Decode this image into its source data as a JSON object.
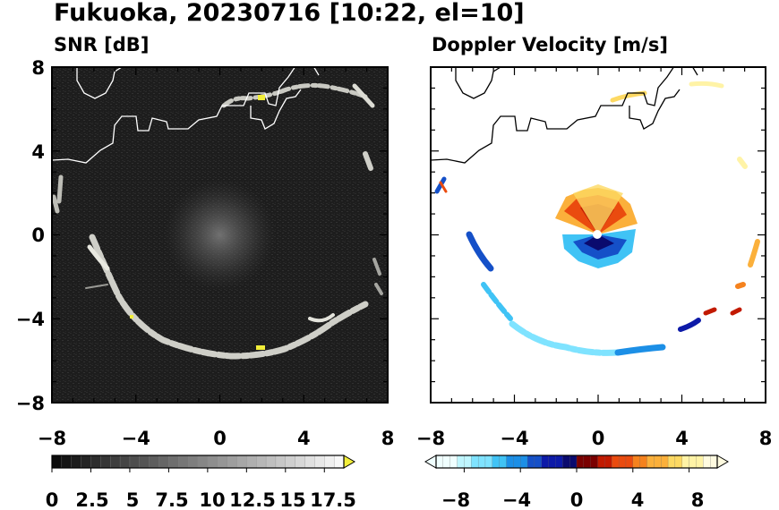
{
  "header": {
    "title": "Fukuoka, 20230716 [10:22, el=10]"
  },
  "colors": {
    "snr_background": "#1e1e1e",
    "coast_on_dark": "#ffffff",
    "coast_on_light": "#000000",
    "echo_bright": "#e8e8e0",
    "echo_highlight": "#f2ee3a",
    "doppler_negative": [
      "#f0ffff",
      "#bff6ff",
      "#7fe3ff",
      "#40c3f5",
      "#1c8fe6",
      "#1550c8",
      "#0d1aa8",
      "#0a0a6e"
    ],
    "doppler_positive": [
      "#7a0000",
      "#c21a00",
      "#ea4b0f",
      "#f5821e",
      "#fbb03b",
      "#fdd963",
      "#fff3a6",
      "#fffbe0"
    ]
  },
  "chart_data": [
    {
      "type": "heatmap",
      "title": "SNR [dB]",
      "xlim": [
        -8,
        8
      ],
      "ylim": [
        -8,
        8
      ],
      "xticks": [
        "−8",
        "−4",
        "0",
        "4",
        "8"
      ],
      "yticks": [
        "8",
        "4",
        "0",
        "−4",
        "−8"
      ],
      "grid": false,
      "colorbar": {
        "min": 0,
        "max": 18.75,
        "levels": 30,
        "extend": "max",
        "tick_values": [
          0,
          2.5,
          5,
          7.5,
          10,
          12.5,
          15,
          17.5
        ],
        "tick_labels": [
          "0",
          "2.5",
          "5",
          "7.5",
          "10",
          "12.5",
          "15",
          "17.5"
        ]
      }
    },
    {
      "type": "heatmap",
      "title": "Doppler Velocity [m/s]",
      "xlim": [
        -8,
        8
      ],
      "ylim": [
        -8,
        8
      ],
      "xticks": [
        "−8",
        "−4",
        "0",
        "4",
        "8"
      ],
      "yticks": [],
      "grid": false,
      "colorbar": {
        "min": -10,
        "max": 10,
        "levels": 40,
        "extend": "both",
        "tick_values": [
          -8,
          -4,
          0,
          4,
          8
        ],
        "tick_labels": [
          "−8",
          "−4",
          "0",
          "4",
          "8"
        ]
      }
    }
  ]
}
